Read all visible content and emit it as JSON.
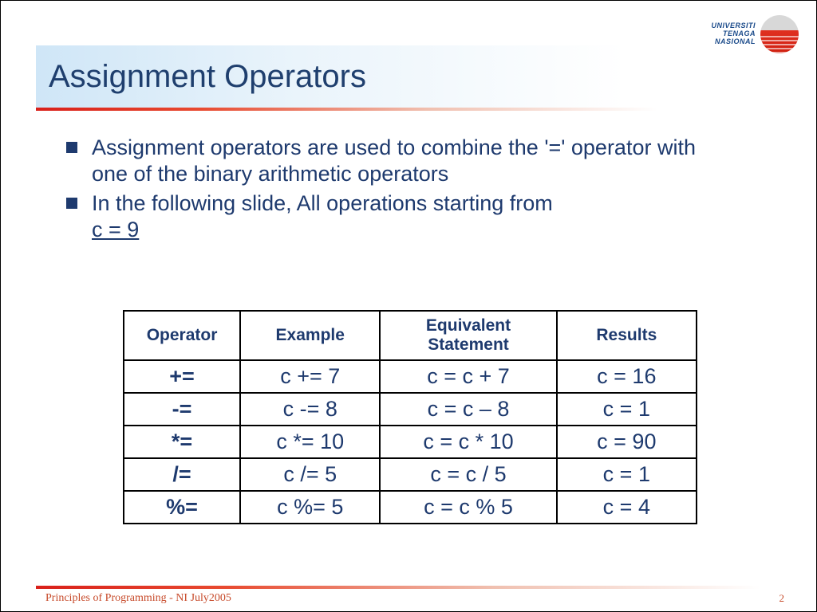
{
  "logo": {
    "line1": "UNIVERSITI",
    "line2": "TENAGA",
    "line3": "NASIONAL"
  },
  "title": "Assignment Operators",
  "bullets": [
    {
      "text": "Assignment operators are used to combine the '=' operator with one of the binary arithmetic operators",
      "suffix": ""
    },
    {
      "text": "In the following slide, All operations starting from ",
      "suffix": "c = 9"
    }
  ],
  "table": {
    "headers": [
      "Operator",
      "Example",
      "Equivalent Statement",
      "Results"
    ],
    "rows": [
      [
        "+=",
        "c += 7",
        "c = c + 7",
        "c = 16"
      ],
      [
        "-=",
        "c -= 8",
        "c = c – 8",
        "c = 1"
      ],
      [
        "*=",
        "c *= 10",
        "c = c * 10",
        "c = 90"
      ],
      [
        "/=",
        "c /= 5",
        "c = c / 5",
        "c = 1"
      ],
      [
        "%=",
        "c %= 5",
        "c = c % 5",
        "c = 4"
      ]
    ]
  },
  "footer": {
    "text": "Principles of Programming - NI July2005",
    "page": "2"
  },
  "colors": {
    "title_text": "#1f3f6e",
    "body_text": "#1e3a6e",
    "accent_red": "#d9201a",
    "footer_text": "#c74a2a",
    "title_bg_start": "#cfe6f7"
  }
}
